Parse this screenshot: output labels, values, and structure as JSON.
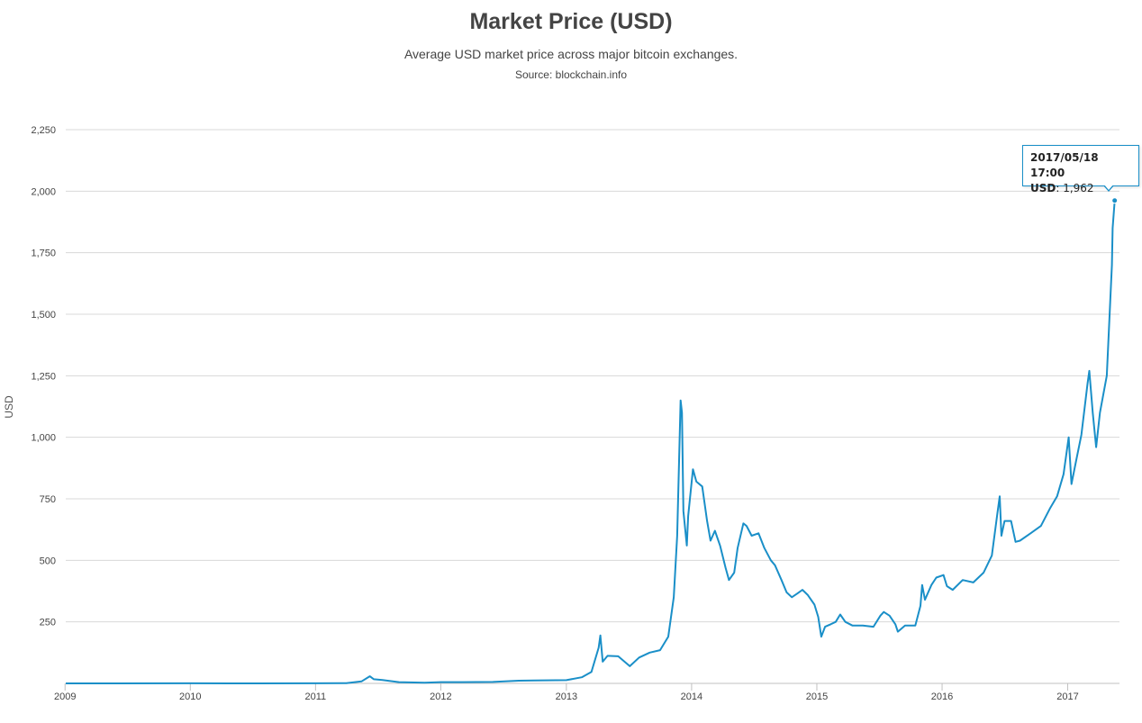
{
  "chart_data": {
    "type": "line",
    "title": "Market Price (USD)",
    "subtitle": "Average USD market price across major bitcoin exchanges.",
    "source": "Source: blockchain.info",
    "xlabel": "",
    "ylabel": "USD",
    "ylim": [
      0,
      2250
    ],
    "xlim": [
      "2009-01-03",
      "2017-06-01"
    ],
    "x_ticks": [
      "2009",
      "2010",
      "2011",
      "2012",
      "2013",
      "2014",
      "2015",
      "2016",
      "2017"
    ],
    "y_ticks": [
      "250",
      "500",
      "750",
      "1,000",
      "1,250",
      "1,500",
      "1,750",
      "2,000",
      "2,250"
    ],
    "grid": true,
    "legend": "none",
    "line_color": "#1a8fc8",
    "series": [
      {
        "x": [
          "2009-01-03",
          "2010-01-01",
          "2010-07-15",
          "2011-01-01",
          "2011-04-01",
          "2011-05-15",
          "2011-06-08",
          "2011-06-20",
          "2011-07-15",
          "2011-09-01",
          "2011-11-15",
          "2012-01-01",
          "2012-03-01",
          "2012-06-01",
          "2012-08-15",
          "2012-10-01",
          "2013-01-01",
          "2013-02-15",
          "2013-03-15",
          "2013-04-05",
          "2013-04-10",
          "2013-04-17",
          "2013-05-01",
          "2013-06-01",
          "2013-07-05",
          "2013-08-01",
          "2013-09-01",
          "2013-10-01",
          "2013-10-25",
          "2013-11-10",
          "2013-11-20",
          "2013-11-30",
          "2013-12-04",
          "2013-12-08",
          "2013-12-18",
          "2013-12-22",
          "2014-01-05",
          "2014-01-15",
          "2014-02-01",
          "2014-02-15",
          "2014-02-25",
          "2014-03-10",
          "2014-03-25",
          "2014-04-10",
          "2014-04-20",
          "2014-05-05",
          "2014-05-15",
          "2014-06-01",
          "2014-06-10",
          "2014-06-25",
          "2014-07-15",
          "2014-08-01",
          "2014-08-20",
          "2014-09-01",
          "2014-09-20",
          "2014-10-05",
          "2014-10-20",
          "2014-11-05",
          "2014-11-20",
          "2014-12-05",
          "2014-12-25",
          "2015-01-05",
          "2015-01-14",
          "2015-01-25",
          "2015-02-10",
          "2015-02-25",
          "2015-03-10",
          "2015-03-25",
          "2015-04-15",
          "2015-05-15",
          "2015-06-15",
          "2015-07-05",
          "2015-07-15",
          "2015-08-01",
          "2015-08-18",
          "2015-08-25",
          "2015-09-15",
          "2015-10-15",
          "2015-10-30",
          "2015-11-04",
          "2015-11-12",
          "2015-12-01",
          "2015-12-15",
          "2016-01-05",
          "2016-01-15",
          "2016-02-01",
          "2016-03-01",
          "2016-04-01",
          "2016-05-01",
          "2016-05-25",
          "2016-06-10",
          "2016-06-17",
          "2016-06-22",
          "2016-07-01",
          "2016-07-20",
          "2016-08-02",
          "2016-08-15",
          "2016-09-15",
          "2016-10-15",
          "2016-11-10",
          "2016-12-01",
          "2016-12-20",
          "2017-01-04",
          "2017-01-12",
          "2017-01-25",
          "2017-02-10",
          "2017-02-28",
          "2017-03-05",
          "2017-03-15",
          "2017-03-25",
          "2017-04-05",
          "2017-04-25",
          "2017-05-05",
          "2017-05-10",
          "2017-05-12",
          "2017-05-18"
        ],
        "values": [
          0,
          0.2,
          0.06,
          0.3,
          0.8,
          8,
          29,
          17,
          14,
          5,
          3,
          5,
          5,
          6,
          11,
          12,
          13,
          25,
          47,
          145,
          195,
          88,
          112,
          110,
          70,
          105,
          125,
          135,
          190,
          350,
          600,
          1150,
          1100,
          700,
          560,
          680,
          870,
          820,
          800,
          660,
          580,
          620,
          560,
          470,
          420,
          450,
          550,
          650,
          640,
          600,
          610,
          550,
          500,
          480,
          420,
          370,
          350,
          365,
          380,
          360,
          320,
          270,
          190,
          230,
          240,
          250,
          280,
          250,
          235,
          235,
          230,
          275,
          290,
          275,
          240,
          210,
          235,
          235,
          315,
          400,
          340,
          400,
          430,
          440,
          395,
          380,
          420,
          410,
          450,
          520,
          690,
          760,
          600,
          660,
          660,
          575,
          580,
          610,
          640,
          710,
          760,
          850,
          1000,
          810,
          900,
          1010,
          1220,
          1270,
          1100,
          960,
          1100,
          1250,
          1550,
          1700,
          1850,
          1962
        ]
      }
    ]
  },
  "tooltip": {
    "title": "2017/05/18 17:00",
    "label": "USD",
    "value": ": 1,962"
  }
}
